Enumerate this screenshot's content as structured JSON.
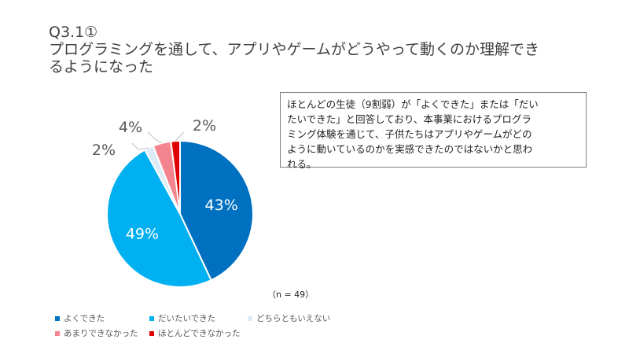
{
  "title": {
    "line1": "Q3.1①",
    "line2": "プログラミングを通して、アプリやゲームがどうやって動くのか理解でき",
    "line3": "るようになった"
  },
  "note": {
    "lines": [
      "ほとんどの生徒（9割弱）が「よくできた」または「だい",
      "たいできた」と回答しており、本事業におけるプログラ",
      "ミング体験を通じて、子供たちはアプリやゲームがどの",
      "ように動いているのかを実感できたのではないかと思わ",
      "れる。"
    ]
  },
  "n_label": "（n = 49）",
  "chart_data": {
    "type": "pie",
    "categories": [
      "よくできた",
      "だいたいできた",
      "どちらともいえない",
      "あまりできなかった",
      "ほとんどできなかった"
    ],
    "values": [
      43,
      49,
      2,
      4,
      2
    ],
    "labels": [
      "43%",
      "49%",
      "2%",
      "4%",
      "2%"
    ],
    "colors": [
      "#0070c0",
      "#00b0f0",
      "#ddebf7",
      "#f4858e",
      "#e00000"
    ],
    "legend_position": "bottom-left"
  }
}
